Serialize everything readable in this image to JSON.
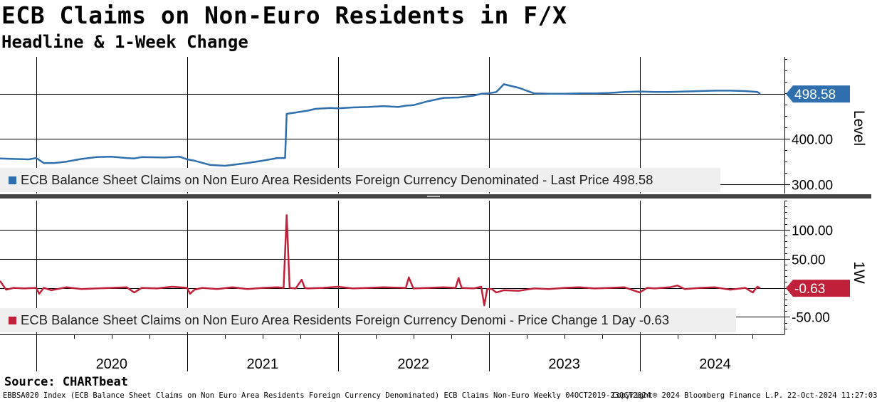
{
  "title": "ECB Claims on Non-Euro Residents in F/X",
  "subtitle": "Headline & 1-Week Change",
  "source": "Source: CHARTbeat",
  "footer": {
    "index_info": "EBBSA020 Index (ECB Balance Sheet Claims on Non Euro Area Residents Foreign Currency Denominated) ECB Claims Non-Euro  Weekly 04OCT2019-23OCT2024",
    "copyright": "Copyright® 2024 Bloomberg Finance L.P.",
    "timestamp": "22-Oct-2024 11:27:03"
  },
  "colors": {
    "level": "#2f6fad",
    "change": "#c0203a"
  },
  "chart_data": [
    {
      "type": "line",
      "panel": "top",
      "ylabel": "Level",
      "ylim": [
        280,
        580
      ],
      "yticks": [
        "400.00",
        "300.00"
      ],
      "ytick_values": [
        400,
        300
      ],
      "legend": "ECB Balance Sheet Claims on Non Euro Area Residents Foreign Currency Denominated - Last Price 498.58",
      "last_value_label": "498.58",
      "last_value": 498.58,
      "grid": true,
      "series": [
        {
          "name": "ECB Balance Sheet Claims on Non Euro Area Residents Foreign Currency Denominated",
          "x": [
            2019.76,
            2019.85,
            2019.95,
            2020.0,
            2020.05,
            2020.12,
            2020.2,
            2020.3,
            2020.4,
            2020.5,
            2020.6,
            2020.65,
            2020.7,
            2020.85,
            2020.95,
            2021.0,
            2021.05,
            2021.15,
            2021.25,
            2021.3,
            2021.4,
            2021.5,
            2021.6,
            2021.65,
            2021.66,
            2021.72,
            2021.8,
            2021.85,
            2021.95,
            2022.0,
            2022.1,
            2022.2,
            2022.3,
            2022.4,
            2022.45,
            2022.5,
            2022.6,
            2022.7,
            2022.8,
            2022.85,
            2022.9,
            2022.95,
            2023.0,
            2023.05,
            2023.1,
            2023.2,
            2023.3,
            2023.4,
            2023.5,
            2023.6,
            2023.7,
            2023.8,
            2023.9,
            2024.0,
            2024.1,
            2024.2,
            2024.3,
            2024.4,
            2024.5,
            2024.6,
            2024.7,
            2024.78,
            2024.8
          ],
          "y": [
            357,
            356,
            355,
            358,
            347,
            347,
            350,
            356,
            360,
            361,
            358,
            357,
            360,
            359,
            361,
            355,
            352,
            343,
            341,
            343,
            347,
            352,
            358,
            358,
            455,
            458,
            462,
            466,
            468,
            467,
            469,
            470,
            472,
            470,
            473,
            474,
            483,
            490,
            491,
            493,
            495,
            499,
            500,
            503,
            520,
            512,
            500,
            499,
            499,
            500,
            500,
            501,
            503,
            504,
            503,
            503,
            504,
            505,
            506,
            506,
            505,
            503,
            499
          ]
        }
      ]
    },
    {
      "type": "line",
      "panel": "bottom",
      "ylabel": "1W",
      "ylim": [
        -80,
        150
      ],
      "yticks": [
        "100.00",
        "50.00",
        "-50.00"
      ],
      "ytick_values": [
        100,
        50,
        -50
      ],
      "legend": "ECB Balance Sheet Claims on Non Euro Area Residents Foreign Currency Denomi - Price Change 1 Day -0.63",
      "last_value_label": "-0.63",
      "last_value": -0.63,
      "grid": true,
      "series": [
        {
          "name": "ECB Balance Sheet Claims on Non Euro Area Residents Foreign Currency Denominated - Price Change 1 Day",
          "x": [
            2019.76,
            2019.8,
            2019.85,
            2019.92,
            2020.0,
            2020.02,
            2020.05,
            2020.1,
            2020.2,
            2020.3,
            2020.4,
            2020.5,
            2020.6,
            2020.65,
            2020.7,
            2020.8,
            2020.9,
            2021.0,
            2021.02,
            2021.05,
            2021.1,
            2021.2,
            2021.3,
            2021.4,
            2021.5,
            2021.6,
            2021.64,
            2021.66,
            2021.68,
            2021.72,
            2021.76,
            2021.78,
            2021.8,
            2021.9,
            2022.0,
            2022.1,
            2022.2,
            2022.3,
            2022.45,
            2022.47,
            2022.5,
            2022.6,
            2022.7,
            2022.78,
            2022.8,
            2022.82,
            2022.9,
            2022.95,
            2022.97,
            2022.99,
            2023.02,
            2023.05,
            2023.1,
            2023.2,
            2023.3,
            2023.4,
            2023.5,
            2023.6,
            2023.7,
            2023.8,
            2023.9,
            2024.0,
            2024.05,
            2024.1,
            2024.2,
            2024.25,
            2024.3,
            2024.4,
            2024.5,
            2024.6,
            2024.7,
            2024.75,
            2024.78,
            2024.8
          ],
          "y": [
            12,
            -3,
            0,
            -1,
            0,
            -10,
            0,
            -4,
            1,
            -2,
            -1,
            0,
            1,
            -8,
            0,
            -1,
            2,
            0,
            -10,
            -3,
            0,
            -2,
            1,
            -2,
            0,
            1,
            0,
            125,
            0,
            -1,
            14,
            0,
            -1,
            0,
            2,
            -1,
            0,
            1,
            0,
            18,
            -1,
            0,
            1,
            0,
            17,
            0,
            -1,
            2,
            -30,
            -2,
            -2,
            -8,
            -4,
            -5,
            -1,
            -2,
            0,
            1,
            -1,
            0,
            1,
            -8,
            0,
            -1,
            1,
            4,
            -2,
            0,
            1,
            -3,
            0,
            -8,
            2,
            -0.63
          ]
        }
      ]
    }
  ],
  "xaxis": {
    "range": [
      2019.76,
      2024.96
    ],
    "labels": [
      "2020",
      "2021",
      "2022",
      "2023",
      "2024"
    ],
    "label_positions": [
      2020.5,
      2021.5,
      2022.5,
      2023.5,
      2024.5
    ],
    "year_boundaries": [
      2020.0,
      2021.0,
      2022.0,
      2023.0,
      2024.0
    ]
  }
}
